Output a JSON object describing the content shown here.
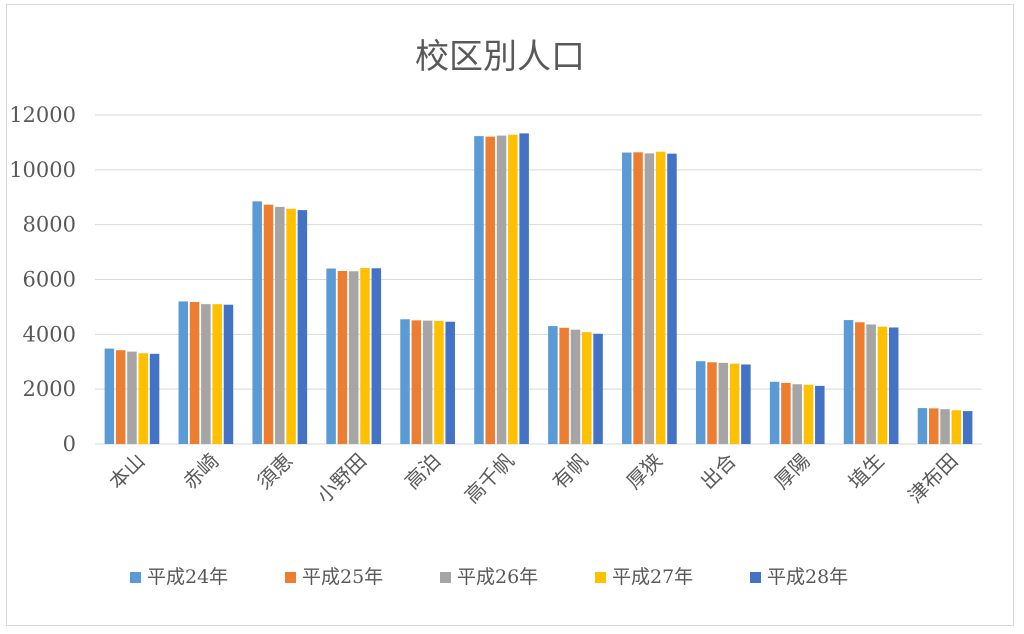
{
  "chart_data": {
    "type": "bar",
    "title": "校区別人口",
    "xlabel": "",
    "ylabel": "",
    "ylim": [
      0,
      12000
    ],
    "yticks": [
      0,
      2000,
      4000,
      6000,
      8000,
      10000,
      12000
    ],
    "grid": true,
    "legend_position": "bottom",
    "categories": [
      "本山",
      "赤崎",
      "須恵",
      "小野田",
      "高泊",
      "高千帆",
      "有帆",
      "厚狭",
      "出合",
      "厚陽",
      "埴生",
      "津布田"
    ],
    "series": [
      {
        "name": "平成24年",
        "color": "#5b9bd5",
        "values": [
          3480,
          5200,
          8850,
          6400,
          4550,
          11230,
          4300,
          10630,
          3020,
          2270,
          4520,
          1310
        ]
      },
      {
        "name": "平成25年",
        "color": "#ed7d31",
        "values": [
          3420,
          5180,
          8730,
          6310,
          4510,
          11210,
          4240,
          10640,
          2980,
          2230,
          4440,
          1300
        ]
      },
      {
        "name": "平成26年",
        "color": "#a5a5a5",
        "values": [
          3370,
          5100,
          8650,
          6300,
          4500,
          11250,
          4170,
          10600,
          2960,
          2180,
          4360,
          1270
        ]
      },
      {
        "name": "平成27年",
        "color": "#ffc000",
        "values": [
          3310,
          5100,
          8580,
          6420,
          4490,
          11280,
          4080,
          10660,
          2930,
          2160,
          4280,
          1230
        ]
      },
      {
        "name": "平成28年",
        "color": "#4472c4",
        "values": [
          3290,
          5080,
          8530,
          6410,
          4460,
          11330,
          4020,
          10590,
          2900,
          2120,
          4250,
          1200
        ]
      }
    ]
  }
}
